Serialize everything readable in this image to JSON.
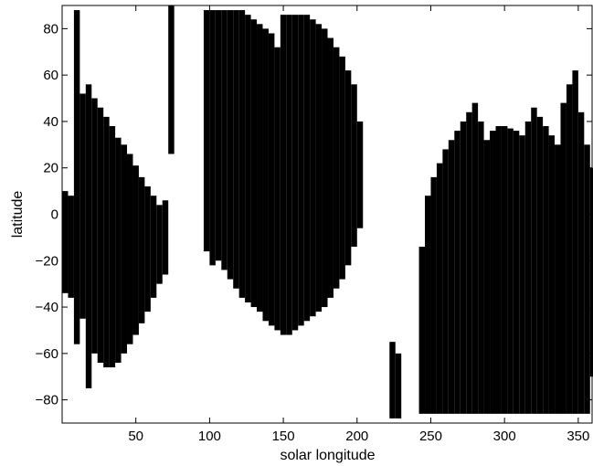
{
  "chart_data": {
    "type": "scatter",
    "title": "",
    "xlabel": "solar longitude",
    "ylabel": "latitude",
    "xlim": [
      0,
      360
    ],
    "ylim": [
      -90,
      90
    ],
    "xticks": [
      50,
      100,
      150,
      200,
      250,
      300,
      350
    ],
    "yticks": [
      -80,
      -60,
      -40,
      -20,
      0,
      20,
      40,
      60,
      80
    ],
    "grid": false,
    "legend": "none",
    "colors": {
      "marks": "#000000",
      "axes": "#000000",
      "background": "#ffffff"
    },
    "coverage_spans": [
      {
        "ls": 0,
        "lat_min": -34,
        "lat_max": 10
      },
      {
        "ls": 4,
        "lat_min": -36,
        "lat_max": 8
      },
      {
        "ls": 8,
        "lat_min": -56,
        "lat_max": 88
      },
      {
        "ls": 12,
        "lat_min": -45,
        "lat_max": 52
      },
      {
        "ls": 16,
        "lat_min": -75,
        "lat_max": 56
      },
      {
        "ls": 20,
        "lat_min": -60,
        "lat_max": 50
      },
      {
        "ls": 24,
        "lat_min": -64,
        "lat_max": 46
      },
      {
        "ls": 28,
        "lat_min": -66,
        "lat_max": 42
      },
      {
        "ls": 32,
        "lat_min": -66,
        "lat_max": 38
      },
      {
        "ls": 36,
        "lat_min": -64,
        "lat_max": 33
      },
      {
        "ls": 40,
        "lat_min": -60,
        "lat_max": 30
      },
      {
        "ls": 44,
        "lat_min": -56,
        "lat_max": 26
      },
      {
        "ls": 48,
        "lat_min": -52,
        "lat_max": 21
      },
      {
        "ls": 52,
        "lat_min": -47,
        "lat_max": 16
      },
      {
        "ls": 56,
        "lat_min": -42,
        "lat_max": 12
      },
      {
        "ls": 60,
        "lat_min": -36,
        "lat_max": 8
      },
      {
        "ls": 64,
        "lat_min": -30,
        "lat_max": 4
      },
      {
        "ls": 68,
        "lat_min": -26,
        "lat_max": 6
      },
      {
        "ls": 72,
        "lat_min": 26,
        "lat_max": 90
      },
      {
        "ls": 96,
        "lat_min": -16,
        "lat_max": 88
      },
      {
        "ls": 100,
        "lat_min": -22,
        "lat_max": 88
      },
      {
        "ls": 104,
        "lat_min": -20,
        "lat_max": 88
      },
      {
        "ls": 108,
        "lat_min": -24,
        "lat_max": 88
      },
      {
        "ls": 112,
        "lat_min": -28,
        "lat_max": 88
      },
      {
        "ls": 116,
        "lat_min": -32,
        "lat_max": 88
      },
      {
        "ls": 120,
        "lat_min": -36,
        "lat_max": 88
      },
      {
        "ls": 124,
        "lat_min": -38,
        "lat_max": 86
      },
      {
        "ls": 128,
        "lat_min": -40,
        "lat_max": 84
      },
      {
        "ls": 132,
        "lat_min": -42,
        "lat_max": 82
      },
      {
        "ls": 136,
        "lat_min": -46,
        "lat_max": 80
      },
      {
        "ls": 140,
        "lat_min": -48,
        "lat_max": 78
      },
      {
        "ls": 144,
        "lat_min": -50,
        "lat_max": 72
      },
      {
        "ls": 148,
        "lat_min": -52,
        "lat_max": 86
      },
      {
        "ls": 152,
        "lat_min": -52,
        "lat_max": 86
      },
      {
        "ls": 156,
        "lat_min": -50,
        "lat_max": 86
      },
      {
        "ls": 160,
        "lat_min": -48,
        "lat_max": 86
      },
      {
        "ls": 164,
        "lat_min": -46,
        "lat_max": 86
      },
      {
        "ls": 168,
        "lat_min": -44,
        "lat_max": 84
      },
      {
        "ls": 172,
        "lat_min": -42,
        "lat_max": 82
      },
      {
        "ls": 176,
        "lat_min": -40,
        "lat_max": 80
      },
      {
        "ls": 180,
        "lat_min": -36,
        "lat_max": 76
      },
      {
        "ls": 184,
        "lat_min": -32,
        "lat_max": 72
      },
      {
        "ls": 188,
        "lat_min": -28,
        "lat_max": 68
      },
      {
        "ls": 192,
        "lat_min": -22,
        "lat_max": 62
      },
      {
        "ls": 196,
        "lat_min": -14,
        "lat_max": 56
      },
      {
        "ls": 200,
        "lat_min": -6,
        "lat_max": 40
      },
      {
        "ls": 222,
        "lat_min": -88,
        "lat_max": -55
      },
      {
        "ls": 226,
        "lat_min": -88,
        "lat_max": -60
      },
      {
        "ls": 242,
        "lat_min": -86,
        "lat_max": -14
      },
      {
        "ls": 246,
        "lat_min": -86,
        "lat_max": 8
      },
      {
        "ls": 250,
        "lat_min": -86,
        "lat_max": 16
      },
      {
        "ls": 254,
        "lat_min": -86,
        "lat_max": 22
      },
      {
        "ls": 258,
        "lat_min": -86,
        "lat_max": 28
      },
      {
        "ls": 262,
        "lat_min": -86,
        "lat_max": 32
      },
      {
        "ls": 266,
        "lat_min": -86,
        "lat_max": 36
      },
      {
        "ls": 270,
        "lat_min": -86,
        "lat_max": 40
      },
      {
        "ls": 274,
        "lat_min": -86,
        "lat_max": 44
      },
      {
        "ls": 278,
        "lat_min": -86,
        "lat_max": 48
      },
      {
        "ls": 282,
        "lat_min": -86,
        "lat_max": 40
      },
      {
        "ls": 286,
        "lat_min": -86,
        "lat_max": 32
      },
      {
        "ls": 290,
        "lat_min": -86,
        "lat_max": 36
      },
      {
        "ls": 294,
        "lat_min": -86,
        "lat_max": 38
      },
      {
        "ls": 298,
        "lat_min": -86,
        "lat_max": 38
      },
      {
        "ls": 302,
        "lat_min": -86,
        "lat_max": 37
      },
      {
        "ls": 306,
        "lat_min": -86,
        "lat_max": 36
      },
      {
        "ls": 310,
        "lat_min": -86,
        "lat_max": 34
      },
      {
        "ls": 314,
        "lat_min": -86,
        "lat_max": 40
      },
      {
        "ls": 318,
        "lat_min": -86,
        "lat_max": 46
      },
      {
        "ls": 322,
        "lat_min": -86,
        "lat_max": 42
      },
      {
        "ls": 326,
        "lat_min": -86,
        "lat_max": 38
      },
      {
        "ls": 330,
        "lat_min": -86,
        "lat_max": 34
      },
      {
        "ls": 334,
        "lat_min": -86,
        "lat_max": 30
      },
      {
        "ls": 338,
        "lat_min": -86,
        "lat_max": 48
      },
      {
        "ls": 342,
        "lat_min": -86,
        "lat_max": 56
      },
      {
        "ls": 346,
        "lat_min": -86,
        "lat_max": 62
      },
      {
        "ls": 350,
        "lat_min": -86,
        "lat_max": 44
      },
      {
        "ls": 354,
        "lat_min": -86,
        "lat_max": 30
      },
      {
        "ls": 358,
        "lat_min": -70,
        "lat_max": 20
      }
    ]
  }
}
